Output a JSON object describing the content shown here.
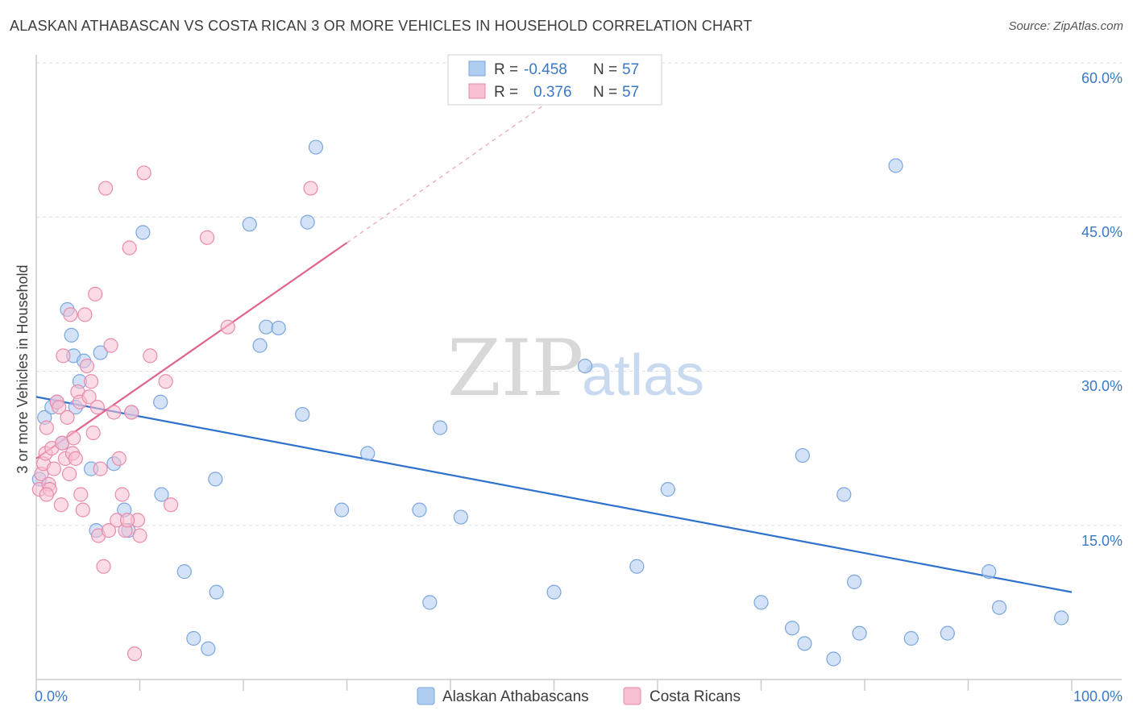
{
  "chart_data": {
    "type": "scatter",
    "title": "ALASKAN ATHABASCAN VS COSTA RICAN 3 OR MORE VEHICLES IN HOUSEHOLD CORRELATION CHART",
    "source": "Source: ZipAtlas.com",
    "ylabel": "3 or more Vehicles in Household",
    "xlabel": "",
    "xlim": [
      0,
      100
    ],
    "ylim": [
      0,
      60
    ],
    "x_tick_labels": [
      "0.0%",
      "100.0%"
    ],
    "y_ticks": [
      15,
      30,
      45,
      60
    ],
    "y_tick_labels": [
      "15.0%",
      "30.0%",
      "45.0%",
      "60.0%"
    ],
    "watermark": {
      "zip": "ZIP",
      "atlas": "atlas"
    },
    "legend_box": [
      {
        "r_label": "R =",
        "r_value": "-0.458",
        "n_label": "N =",
        "n_value": "57"
      },
      {
        "r_label": "R =",
        "r_value": "0.376",
        "n_label": "N =",
        "n_value": "57"
      }
    ],
    "series": [
      {
        "name": "Alaskan Athabascans",
        "color": "#aecbf0",
        "stroke": "#7aa6de",
        "line_color": "#2f72cc",
        "trend": {
          "x": [
            0,
            100
          ],
          "y": [
            27.5,
            8.5
          ]
        },
        "points": [
          [
            0.3,
            19.5
          ],
          [
            0.8,
            25.5
          ],
          [
            1.5,
            26.5
          ],
          [
            2.0,
            27.0
          ],
          [
            2.5,
            23.0
          ],
          [
            3.0,
            36.0
          ],
          [
            3.4,
            33.5
          ],
          [
            3.6,
            31.5
          ],
          [
            3.8,
            26.5
          ],
          [
            4.2,
            29.0
          ],
          [
            4.6,
            31.0
          ],
          [
            5.3,
            20.5
          ],
          [
            5.8,
            14.5
          ],
          [
            6.2,
            31.8
          ],
          [
            7.5,
            21.0
          ],
          [
            8.5,
            16.5
          ],
          [
            8.9,
            14.5
          ],
          [
            9.2,
            26.0
          ],
          [
            10.3,
            43.5
          ],
          [
            12.0,
            27.0
          ],
          [
            12.1,
            18.0
          ],
          [
            14.3,
            10.5
          ],
          [
            15.2,
            4.0
          ],
          [
            16.6,
            3.0
          ],
          [
            17.3,
            19.5
          ],
          [
            17.4,
            8.5
          ],
          [
            20.6,
            44.3
          ],
          [
            21.6,
            32.5
          ],
          [
            22.2,
            34.3
          ],
          [
            23.4,
            34.2
          ],
          [
            25.7,
            25.8
          ],
          [
            26.2,
            44.5
          ],
          [
            27.0,
            51.8
          ],
          [
            29.5,
            16.5
          ],
          [
            32.0,
            22.0
          ],
          [
            37.0,
            16.5
          ],
          [
            38.0,
            7.5
          ],
          [
            39.0,
            24.5
          ],
          [
            41.0,
            15.8
          ],
          [
            50.0,
            8.5
          ],
          [
            53.0,
            30.5
          ],
          [
            58.0,
            11.0
          ],
          [
            61.0,
            18.5
          ],
          [
            70.0,
            7.5
          ],
          [
            73.0,
            5.0
          ],
          [
            74.0,
            21.8
          ],
          [
            74.2,
            3.5
          ],
          [
            77.0,
            2.0
          ],
          [
            78.0,
            18.0
          ],
          [
            79.0,
            9.5
          ],
          [
            79.5,
            4.5
          ],
          [
            83.0,
            50.0
          ],
          [
            84.5,
            4.0
          ],
          [
            88.0,
            4.5
          ],
          [
            92.0,
            10.5
          ],
          [
            93.0,
            7.0
          ],
          [
            99.0,
            6.0
          ]
        ]
      },
      {
        "name": "Costa Ricans",
        "color": "#f7c0d2",
        "stroke": "#e98aab",
        "line_color": "#e0648f",
        "trend": {
          "x": [
            0,
            30
          ],
          "y": [
            21.5,
            42.5
          ]
        },
        "trend_ext": {
          "x": [
            30,
            52
          ],
          "y": [
            42.5,
            58.0
          ]
        },
        "points": [
          [
            0.3,
            18.5
          ],
          [
            0.5,
            20.0
          ],
          [
            0.7,
            21.0
          ],
          [
            0.9,
            22.0
          ],
          [
            1.0,
            24.5
          ],
          [
            1.2,
            19.0
          ],
          [
            1.3,
            18.5
          ],
          [
            1.5,
            22.5
          ],
          [
            1.7,
            20.5
          ],
          [
            2.0,
            27.0
          ],
          [
            2.2,
            26.5
          ],
          [
            2.5,
            23.0
          ],
          [
            2.6,
            31.5
          ],
          [
            2.8,
            21.5
          ],
          [
            3.0,
            25.5
          ],
          [
            3.2,
            20.0
          ],
          [
            3.3,
            35.5
          ],
          [
            3.5,
            22.0
          ],
          [
            3.8,
            21.5
          ],
          [
            4.0,
            28.0
          ],
          [
            4.2,
            27.0
          ],
          [
            4.3,
            18.0
          ],
          [
            4.5,
            16.5
          ],
          [
            4.7,
            35.5
          ],
          [
            4.9,
            30.5
          ],
          [
            5.1,
            27.5
          ],
          [
            5.3,
            29.0
          ],
          [
            5.5,
            24.0
          ],
          [
            5.7,
            37.5
          ],
          [
            6.0,
            14.0
          ],
          [
            6.2,
            20.5
          ],
          [
            6.5,
            11.0
          ],
          [
            6.7,
            47.8
          ],
          [
            7.0,
            14.5
          ],
          [
            7.2,
            32.5
          ],
          [
            7.5,
            26.0
          ],
          [
            7.8,
            15.5
          ],
          [
            8.0,
            21.5
          ],
          [
            8.3,
            18.0
          ],
          [
            8.6,
            14.5
          ],
          [
            9.0,
            42.0
          ],
          [
            9.2,
            26.0
          ],
          [
            9.5,
            2.5
          ],
          [
            9.8,
            15.5
          ],
          [
            10.0,
            14.0
          ],
          [
            10.4,
            49.3
          ],
          [
            11.0,
            31.5
          ],
          [
            12.5,
            29.0
          ],
          [
            13.0,
            17.0
          ],
          [
            16.5,
            43.0
          ],
          [
            18.5,
            34.3
          ],
          [
            26.5,
            47.8
          ],
          [
            1.0,
            18.0
          ],
          [
            2.4,
            17.0
          ],
          [
            3.6,
            23.5
          ],
          [
            5.9,
            26.5
          ],
          [
            8.8,
            15.5
          ]
        ]
      }
    ]
  }
}
